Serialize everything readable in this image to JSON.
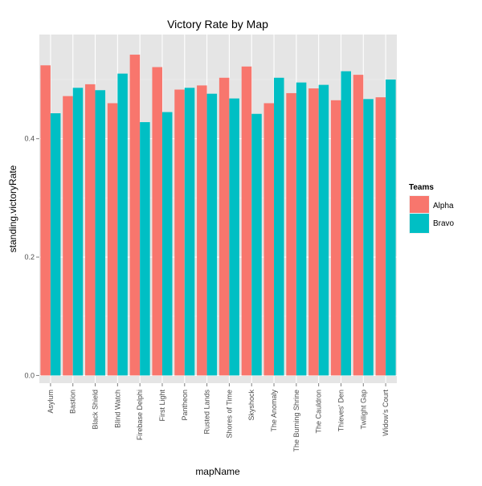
{
  "chart_data": {
    "type": "bar",
    "title": "Victory Rate by Map",
    "xlabel": "mapName",
    "ylabel": "standing.victoryRate",
    "ylim": [
      -0.013,
      0.576
    ],
    "yticks": [
      0.0,
      0.2,
      0.4
    ],
    "ytick_labels": [
      "0.0",
      "0.2",
      "0.4"
    ],
    "grid": true,
    "legend": {
      "title": "Teams",
      "placement": "right"
    },
    "categories": [
      "Asylum",
      "Bastion",
      "Black Shield",
      "Blind Watch",
      "Firebase Delphi",
      "First Light",
      "Pantheon",
      "Rusted Lands",
      "Shores of Time",
      "Skyshock",
      "The Anomaly",
      "The Burning Shrine",
      "The Cauldron",
      "Thieves' Den",
      "Twilight Gap",
      "Widow's Court"
    ],
    "series": [
      {
        "name": "Alpha",
        "color": "#f8766d",
        "values": [
          0.524,
          0.472,
          0.492,
          0.46,
          0.542,
          0.521,
          0.483,
          0.49,
          0.503,
          0.522,
          0.46,
          0.477,
          0.485,
          0.465,
          0.508,
          0.47
        ]
      },
      {
        "name": "Bravo",
        "color": "#00bfc4",
        "values": [
          0.443,
          0.486,
          0.482,
          0.51,
          0.428,
          0.445,
          0.486,
          0.476,
          0.468,
          0.442,
          0.503,
          0.495,
          0.491,
          0.514,
          0.467,
          0.5
        ]
      }
    ]
  }
}
